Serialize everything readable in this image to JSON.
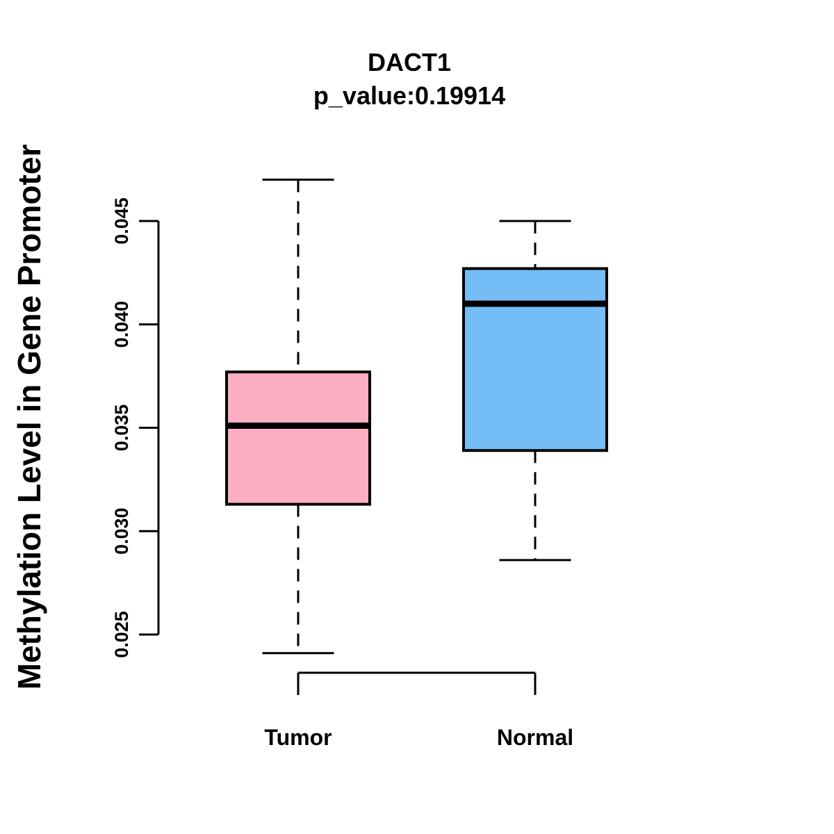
{
  "chart_data": {
    "type": "boxplot",
    "title": "DACT1",
    "subtitle": "p_value:0.19914",
    "ylabel": "Methylation Level in Gene Promoter",
    "ylim": [
      0.025,
      0.045
    ],
    "yticks": [
      "0.025",
      "0.030",
      "0.035",
      "0.040",
      "0.045"
    ],
    "grid": false,
    "legend_position": "none",
    "stroke_color": "#000000",
    "groups": [
      {
        "label": "Tumor",
        "fill_color": "#FCAFC2",
        "lower_whisker": 0.0241,
        "q1": 0.0313,
        "median": 0.0351,
        "q3": 0.0377,
        "upper_whisker": 0.047
      },
      {
        "label": "Normal",
        "fill_color": "#74BDF6",
        "lower_whisker": 0.0286,
        "q1": 0.0339,
        "median": 0.041,
        "q3": 0.0427,
        "upper_whisker": 0.045
      }
    ]
  }
}
